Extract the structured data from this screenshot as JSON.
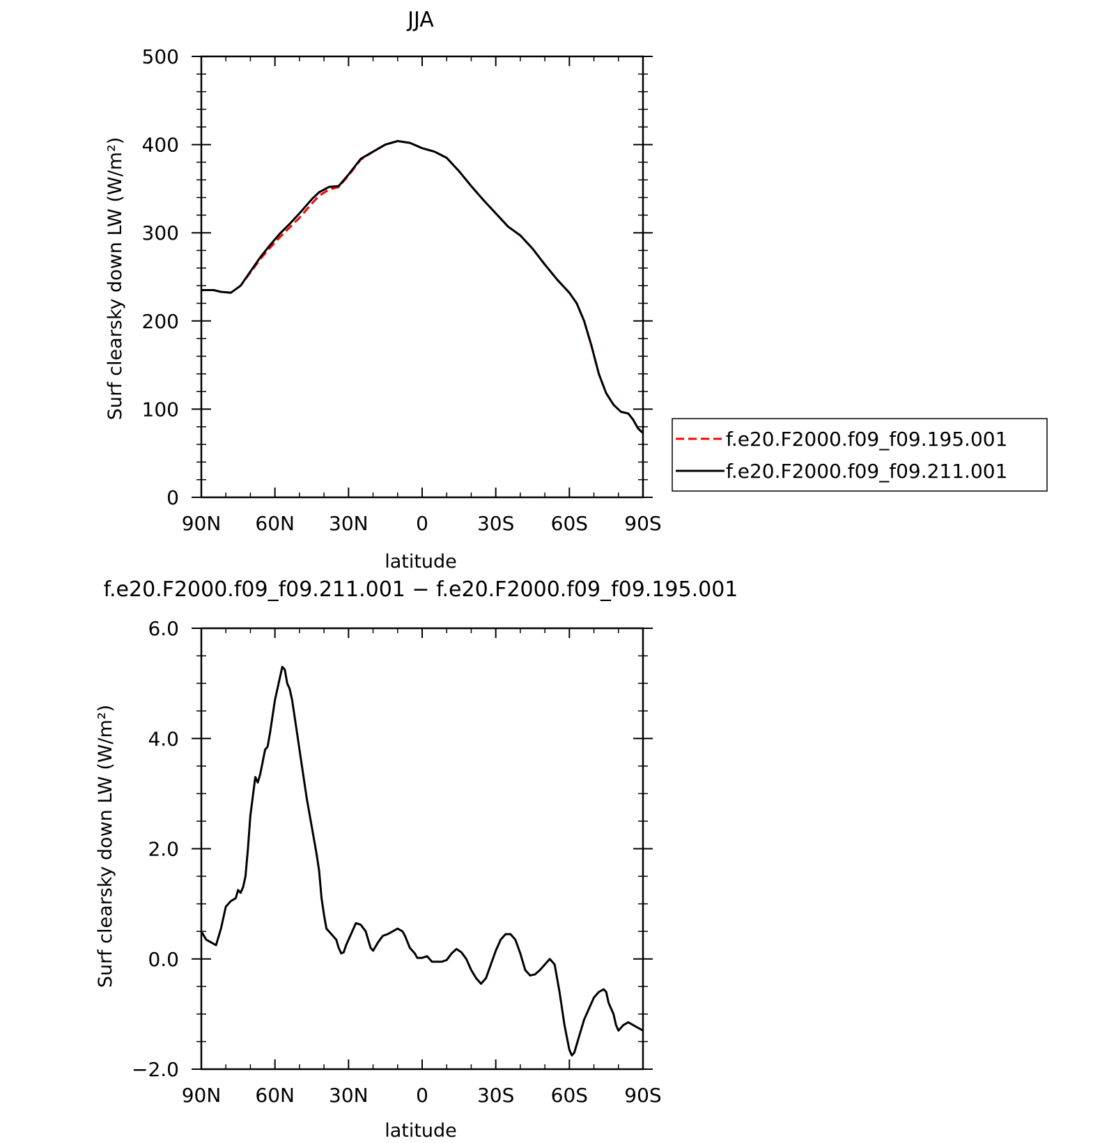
{
  "chart_data": [
    {
      "type": "line",
      "title": "JJA",
      "xlabel": "latitude",
      "ylabel": "Surf clearsky down LW (W/m²)",
      "xlim": [
        90,
        -90
      ],
      "ylim": [
        0,
        500
      ],
      "x_ticks": [
        {
          "value": 90,
          "label": "90N"
        },
        {
          "value": 60,
          "label": "60N"
        },
        {
          "value": 30,
          "label": "30N"
        },
        {
          "value": 0,
          "label": "0"
        },
        {
          "value": -30,
          "label": "30S"
        },
        {
          "value": -60,
          "label": "60S"
        },
        {
          "value": -90,
          "label": "90S"
        }
      ],
      "y_ticks": [
        {
          "value": 0,
          "label": "0"
        },
        {
          "value": 100,
          "label": "100"
        },
        {
          "value": 200,
          "label": "200"
        },
        {
          "value": 300,
          "label": "300"
        },
        {
          "value": 400,
          "label": "400"
        },
        {
          "value": 500,
          "label": "500"
        }
      ],
      "grid": false,
      "legend": "right",
      "series": [
        {
          "name": "f.e20.F2000.f09_f09.195.001",
          "color": "#ff0000",
          "dash": "dashed",
          "points": [
            [
              90,
              235
            ],
            [
              85,
              235
            ],
            [
              82,
              233
            ],
            [
              78,
              232
            ],
            [
              74,
              240
            ],
            [
              70,
              255
            ],
            [
              66,
              270
            ],
            [
              62,
              283
            ],
            [
              58,
              295
            ],
            [
              54,
              306
            ],
            [
              50,
              317
            ],
            [
              45,
              333
            ],
            [
              42,
              342
            ],
            [
              38,
              349
            ],
            [
              34,
              352
            ],
            [
              30,
              365
            ],
            [
              25,
              383
            ],
            [
              20,
              392
            ],
            [
              15,
              400
            ],
            [
              10,
              404
            ],
            [
              5,
              402
            ],
            [
              0,
              396
            ],
            [
              -5,
              392
            ],
            [
              -10,
              385
            ],
            [
              -15,
              370
            ],
            [
              -20,
              353
            ],
            [
              -25,
              337
            ],
            [
              -30,
              322
            ],
            [
              -35,
              307
            ],
            [
              -40,
              297
            ],
            [
              -45,
              282
            ],
            [
              -50,
              264
            ],
            [
              -55,
              247
            ],
            [
              -60,
              232
            ],
            [
              -63,
              220
            ],
            [
              -66,
              200
            ],
            [
              -69,
              172
            ],
            [
              -72,
              140
            ],
            [
              -75,
              118
            ],
            [
              -78,
              105
            ],
            [
              -81,
              97
            ],
            [
              -84,
              95
            ],
            [
              -86,
              88
            ],
            [
              -88,
              78
            ],
            [
              -90,
              73
            ]
          ]
        },
        {
          "name": "f.e20.F2000.f09_f09.211.001",
          "color": "#000000",
          "dash": "solid",
          "points": [
            [
              90,
              235
            ],
            [
              85,
              235
            ],
            [
              82,
              233
            ],
            [
              78,
              232
            ],
            [
              74,
              240
            ],
            [
              70,
              256
            ],
            [
              66,
              272
            ],
            [
              62,
              286
            ],
            [
              58,
              299
            ],
            [
              54,
              310
            ],
            [
              50,
              322
            ],
            [
              45,
              338
            ],
            [
              42,
              346
            ],
            [
              38,
              352
            ],
            [
              34,
              353
            ],
            [
              30,
              366
            ],
            [
              25,
              384
            ],
            [
              20,
              392
            ],
            [
              15,
              400
            ],
            [
              10,
              404
            ],
            [
              5,
              402
            ],
            [
              0,
              396
            ],
            [
              -5,
              392
            ],
            [
              -10,
              385
            ],
            [
              -15,
              370
            ],
            [
              -20,
              353
            ],
            [
              -25,
              337
            ],
            [
              -30,
              322
            ],
            [
              -35,
              307
            ],
            [
              -40,
              297
            ],
            [
              -45,
              282
            ],
            [
              -50,
              264
            ],
            [
              -55,
              247
            ],
            [
              -60,
              232
            ],
            [
              -63,
              220
            ],
            [
              -66,
              200
            ],
            [
              -69,
              172
            ],
            [
              -72,
              140
            ],
            [
              -75,
              118
            ],
            [
              -78,
              105
            ],
            [
              -81,
              97
            ],
            [
              -84,
              95
            ],
            [
              -86,
              88
            ],
            [
              -88,
              78
            ],
            [
              -90,
              73
            ]
          ]
        }
      ]
    },
    {
      "type": "line",
      "title": "f.e20.F2000.f09_f09.211.001 − f.e20.F2000.f09_f09.195.001",
      "xlabel": "latitude",
      "ylabel": "Surf clearsky down LW (W/m²)",
      "xlim": [
        90,
        -90
      ],
      "ylim": [
        -2,
        6
      ],
      "x_ticks": [
        {
          "value": 90,
          "label": "90N"
        },
        {
          "value": 60,
          "label": "60N"
        },
        {
          "value": 30,
          "label": "30N"
        },
        {
          "value": 0,
          "label": "0"
        },
        {
          "value": -30,
          "label": "30S"
        },
        {
          "value": -60,
          "label": "60S"
        },
        {
          "value": -90,
          "label": "90S"
        }
      ],
      "y_ticks": [
        {
          "value": -2,
          "label": "−2.0"
        },
        {
          "value": 0,
          "label": "0.0"
        },
        {
          "value": 2,
          "label": "2.0"
        },
        {
          "value": 4,
          "label": "4.0"
        },
        {
          "value": 6,
          "label": "6.0"
        }
      ],
      "grid": false,
      "series": [
        {
          "color": "#000000",
          "dash": "solid",
          "points": [
            [
              90,
              0.5
            ],
            [
              88,
              0.35
            ],
            [
              86,
              0.3
            ],
            [
              84,
              0.25
            ],
            [
              82,
              0.55
            ],
            [
              80,
              0.95
            ],
            [
              78,
              1.05
            ],
            [
              76,
              1.1
            ],
            [
              75,
              1.25
            ],
            [
              74,
              1.2
            ],
            [
              73,
              1.3
            ],
            [
              72,
              1.5
            ],
            [
              71,
              2.0
            ],
            [
              70,
              2.6
            ],
            [
              68,
              3.3
            ],
            [
              67,
              3.2
            ],
            [
              66,
              3.35
            ],
            [
              64,
              3.8
            ],
            [
              63,
              3.85
            ],
            [
              62,
              4.1
            ],
            [
              60,
              4.7
            ],
            [
              58,
              5.1
            ],
            [
              57,
              5.3
            ],
            [
              56,
              5.25
            ],
            [
              55,
              5.0
            ],
            [
              54,
              4.9
            ],
            [
              53,
              4.7
            ],
            [
              51,
              4.1
            ],
            [
              49,
              3.5
            ],
            [
              47,
              2.9
            ],
            [
              45,
              2.4
            ],
            [
              43,
              1.9
            ],
            [
              42,
              1.6
            ],
            [
              41,
              1.1
            ],
            [
              40,
              0.8
            ],
            [
              39,
              0.55
            ],
            [
              38,
              0.5
            ],
            [
              37,
              0.45
            ],
            [
              35,
              0.35
            ],
            [
              34,
              0.2
            ],
            [
              33,
              0.1
            ],
            [
              32,
              0.12
            ],
            [
              31,
              0.25
            ],
            [
              30,
              0.35
            ],
            [
              28,
              0.55
            ],
            [
              27,
              0.65
            ],
            [
              25,
              0.62
            ],
            [
              23,
              0.5
            ],
            [
              22,
              0.35
            ],
            [
              21,
              0.2
            ],
            [
              20,
              0.15
            ],
            [
              18,
              0.3
            ],
            [
              16,
              0.42
            ],
            [
              14,
              0.45
            ],
            [
              12,
              0.5
            ],
            [
              10,
              0.55
            ],
            [
              8,
              0.5
            ],
            [
              7,
              0.42
            ],
            [
              5,
              0.2
            ],
            [
              3,
              0.1
            ],
            [
              2,
              0.02
            ],
            [
              0,
              0.02
            ],
            [
              -2,
              0.05
            ],
            [
              -4,
              -0.05
            ],
            [
              -6,
              -0.05
            ],
            [
              -8,
              -0.05
            ],
            [
              -10,
              -0.02
            ],
            [
              -12,
              0.1
            ],
            [
              -14,
              0.18
            ],
            [
              -16,
              0.12
            ],
            [
              -18,
              0.0
            ],
            [
              -20,
              -0.2
            ],
            [
              -22,
              -0.35
            ],
            [
              -24,
              -0.45
            ],
            [
              -26,
              -0.35
            ],
            [
              -28,
              -0.1
            ],
            [
              -30,
              0.15
            ],
            [
              -32,
              0.35
            ],
            [
              -34,
              0.45
            ],
            [
              -36,
              0.45
            ],
            [
              -38,
              0.35
            ],
            [
              -40,
              0.1
            ],
            [
              -42,
              -0.2
            ],
            [
              -44,
              -0.3
            ],
            [
              -46,
              -0.28
            ],
            [
              -48,
              -0.2
            ],
            [
              -50,
              -0.1
            ],
            [
              -52,
              0.0
            ],
            [
              -54,
              -0.1
            ],
            [
              -56,
              -0.6
            ],
            [
              -58,
              -1.2
            ],
            [
              -60,
              -1.65
            ],
            [
              -61,
              -1.75
            ],
            [
              -62,
              -1.7
            ],
            [
              -64,
              -1.4
            ],
            [
              -66,
              -1.1
            ],
            [
              -68,
              -0.9
            ],
            [
              -70,
              -0.7
            ],
            [
              -72,
              -0.6
            ],
            [
              -74,
              -0.55
            ],
            [
              -75,
              -0.6
            ],
            [
              -76,
              -0.8
            ],
            [
              -78,
              -1.0
            ],
            [
              -79,
              -1.2
            ],
            [
              -80,
              -1.3
            ],
            [
              -82,
              -1.2
            ],
            [
              -84,
              -1.15
            ],
            [
              -86,
              -1.2
            ],
            [
              -88,
              -1.25
            ],
            [
              -90,
              -1.3
            ]
          ]
        }
      ]
    }
  ]
}
